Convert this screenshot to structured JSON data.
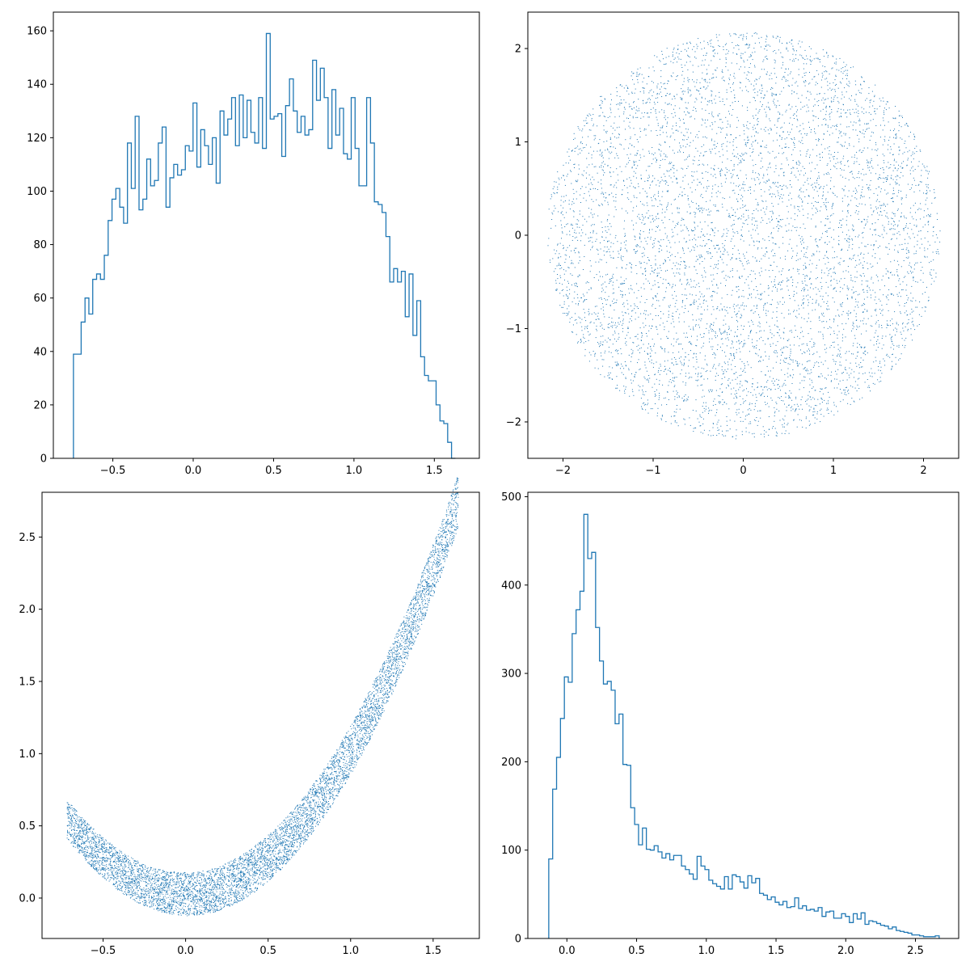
{
  "colors": {
    "series": "#1f77b4",
    "axes": "#000000",
    "background": "#ffffff"
  },
  "chart_data": [
    {
      "id": "hist_x",
      "type": "bar",
      "histtype": "step",
      "title": "",
      "xlabel": "",
      "ylabel": "",
      "xlim": [
        -0.87,
        1.78
      ],
      "ylim": [
        0,
        167
      ],
      "xticks": [
        -0.5,
        0.0,
        0.5,
        1.0,
        1.5
      ],
      "xtick_labels": [
        "−0.5",
        "0.0",
        "0.5",
        "1.0",
        "1.5"
      ],
      "yticks": [
        0,
        20,
        40,
        60,
        80,
        100,
        120,
        140,
        160
      ],
      "ytick_labels": [
        "0",
        "20",
        "40",
        "60",
        "80",
        "100",
        "120",
        "140",
        "160"
      ],
      "bin_start": -0.745,
      "bin_width": 0.024,
      "values": [
        39,
        39,
        51,
        60,
        54,
        67,
        69,
        67,
        76,
        89,
        97,
        101,
        94,
        88,
        118,
        101,
        128,
        93,
        97,
        112,
        102,
        104,
        118,
        124,
        94,
        105,
        110,
        106,
        108,
        117,
        115,
        133,
        109,
        123,
        117,
        110,
        120,
        103,
        130,
        121,
        127,
        135,
        117,
        136,
        120,
        134,
        122,
        118,
        135,
        116,
        159,
        127,
        128,
        129,
        113,
        132,
        142,
        130,
        122,
        128,
        121,
        123,
        149,
        134,
        146,
        135,
        116,
        138,
        121,
        131,
        114,
        112,
        135,
        116,
        102,
        102,
        135,
        118,
        96,
        95,
        92,
        83,
        66,
        71,
        66,
        70,
        53,
        69,
        46,
        59,
        38,
        31,
        29,
        29,
        20,
        14,
        13,
        6,
        0
      ]
    },
    {
      "id": "scatter_disk",
      "type": "scatter",
      "title": "",
      "xlabel": "",
      "ylabel": "",
      "xlim": [
        -2.39,
        2.39
      ],
      "ylim": [
        -2.39,
        2.39
      ],
      "xticks": [
        -2,
        -1,
        0,
        1,
        2
      ],
      "xtick_labels": [
        "−2",
        "−1",
        "0",
        "1",
        "2"
      ],
      "yticks": [
        -2,
        -1,
        0,
        1,
        2
      ],
      "ytick_labels": [
        "−2",
        "−1",
        "0",
        "1",
        "2"
      ],
      "marker": "pixel",
      "point_count": 10000,
      "distribution": "uniform disk, center (0, 0), radius 2.18"
    },
    {
      "id": "scatter_curve",
      "type": "scatter",
      "title": "",
      "xlabel": "",
      "ylabel": "",
      "xlim": [
        -0.87,
        1.78
      ],
      "ylim": [
        -0.28,
        2.81
      ],
      "xticks": [
        -0.5,
        0.0,
        0.5,
        1.0,
        1.5
      ],
      "xtick_labels": [
        "−0.5",
        "0.0",
        "0.5",
        "1.0",
        "1.5"
      ],
      "yticks": [
        0.0,
        0.5,
        1.0,
        1.5,
        2.0,
        2.5
      ],
      "ytick_labels": [
        "0.0",
        "0.5",
        "1.0",
        "1.5",
        "2.0",
        "2.5"
      ],
      "marker": "pixel",
      "point_count": 10000,
      "distribution": "banana-shaped band along y ≈ x², x from -0.72 to 1.65, band from y = x² - 0.12 to y = x² + 0.18"
    },
    {
      "id": "hist_y",
      "type": "bar",
      "histtype": "step",
      "title": "",
      "xlabel": "",
      "ylabel": "",
      "xlim": [
        -0.28,
        2.81
      ],
      "ylim": [
        0,
        505
      ],
      "xticks": [
        0.0,
        0.5,
        1.0,
        1.5,
        2.0,
        2.5
      ],
      "xtick_labels": [
        "0.0",
        "0.5",
        "1.0",
        "1.5",
        "2.0",
        "2.5"
      ],
      "yticks": [
        0,
        100,
        200,
        300,
        400,
        500
      ],
      "ytick_labels": [
        "0",
        "100",
        "200",
        "300",
        "400",
        "500"
      ],
      "bin_start": -0.13,
      "bin_width": 0.028,
      "values": [
        90,
        169,
        205,
        249,
        296,
        290,
        345,
        372,
        393,
        480,
        430,
        437,
        352,
        314,
        288,
        291,
        281,
        243,
        254,
        197,
        196,
        148,
        129,
        106,
        125,
        101,
        100,
        105,
        98,
        91,
        96,
        89,
        94,
        94,
        82,
        78,
        73,
        67,
        93,
        82,
        78,
        66,
        62,
        59,
        56,
        70,
        56,
        72,
        70,
        64,
        57,
        71,
        63,
        68,
        51,
        49,
        44,
        47,
        41,
        38,
        42,
        35,
        36,
        46,
        34,
        37,
        32,
        33,
        31,
        35,
        25,
        30,
        31,
        23,
        23,
        28,
        25,
        18,
        28,
        22,
        29,
        16,
        20,
        19,
        17,
        15,
        14,
        11,
        13,
        9,
        8,
        7,
        6,
        4,
        4,
        3,
        2,
        2,
        2,
        3
      ]
    }
  ]
}
